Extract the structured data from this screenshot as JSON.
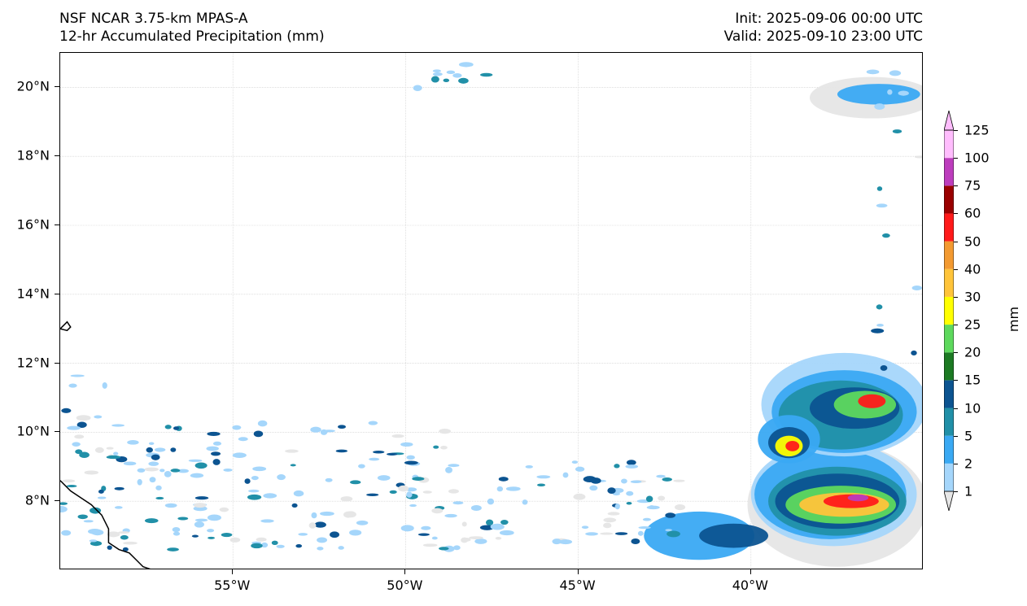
{
  "header": {
    "model_title": "NSF NCAR 3.75-km MPAS-A",
    "field_title": "12-hr Accumulated Precipitation (mm)",
    "init_text": "Init: 2025-09-06 00:00 UTC",
    "valid_text": "Valid: 2025-09-10 23:00 UTC"
  },
  "map": {
    "lon_range": [
      -60,
      -35
    ],
    "lat_range": [
      6,
      21
    ],
    "lat_labels": [
      {
        "value": 20,
        "text": "20°N"
      },
      {
        "value": 18,
        "text": "18°N"
      },
      {
        "value": 16,
        "text": "16°N"
      },
      {
        "value": 14,
        "text": "14°N"
      },
      {
        "value": 12,
        "text": "12°N"
      },
      {
        "value": 10,
        "text": "10°N"
      },
      {
        "value": 8,
        "text": "8°N"
      }
    ],
    "lon_labels": [
      {
        "value": -55,
        "text": "55°W"
      },
      {
        "value": -50,
        "text": "50°W"
      },
      {
        "value": -45,
        "text": "45°W"
      },
      {
        "value": -40,
        "text": "40°W"
      }
    ],
    "precip_regions": [
      {
        "level": 1,
        "lon": -37.5,
        "lat": 7.9,
        "rlon": 2.6,
        "rlat": 1.8
      },
      {
        "level": 2,
        "lon": -37.6,
        "lat": 8.2,
        "rlon": 2.4,
        "rlat": 1.5
      },
      {
        "level": 5,
        "lon": -37.7,
        "lat": 8.2,
        "rlon": 2.2,
        "rlat": 1.3
      },
      {
        "level": 10,
        "lon": -37.5,
        "lat": 8.0,
        "rlon": 2.0,
        "rlat": 1.0
      },
      {
        "level": 15,
        "lon": -37.5,
        "lat": 8.0,
        "rlon": 1.8,
        "rlat": 0.8
      },
      {
        "level": 25,
        "lon": -37.4,
        "lat": 7.9,
        "rlon": 1.6,
        "rlat": 0.55
      },
      {
        "level": 40,
        "lon": -37.3,
        "lat": 7.9,
        "rlon": 1.3,
        "rlat": 0.35
      },
      {
        "level": 60,
        "lon": -37.1,
        "lat": 8.0,
        "rlon": 0.8,
        "rlat": 0.2
      },
      {
        "level": 100,
        "lon": -36.9,
        "lat": 8.1,
        "rlon": 0.3,
        "rlat": 0.1
      },
      {
        "level": 2,
        "lon": -37.3,
        "lat": 10.8,
        "rlon": 2.4,
        "rlat": 1.5
      },
      {
        "level": 5,
        "lon": -37.3,
        "lat": 10.6,
        "rlon": 2.1,
        "rlat": 1.2
      },
      {
        "level": 10,
        "lon": -37.4,
        "lat": 10.5,
        "rlon": 1.8,
        "rlat": 1.0
      },
      {
        "level": 15,
        "lon": -37.0,
        "lat": 10.7,
        "rlon": 1.3,
        "rlat": 0.6
      },
      {
        "level": 25,
        "lon": -36.7,
        "lat": 10.8,
        "rlon": 0.9,
        "rlat": 0.4
      },
      {
        "level": 60,
        "lon": -36.5,
        "lat": 10.9,
        "rlon": 0.4,
        "rlat": 0.2
      },
      {
        "level": 5,
        "lon": -38.9,
        "lat": 9.8,
        "rlon": 0.9,
        "rlat": 0.7
      },
      {
        "level": 15,
        "lon": -38.9,
        "lat": 9.7,
        "rlon": 0.6,
        "rlat": 0.45
      },
      {
        "level": 30,
        "lon": -38.9,
        "lat": 9.6,
        "rlon": 0.4,
        "rlat": 0.3
      },
      {
        "level": 60,
        "lon": -38.8,
        "lat": 9.6,
        "rlon": 0.2,
        "rlat": 0.15
      },
      {
        "level": 5,
        "lon": -41.5,
        "lat": 7.0,
        "rlon": 1.6,
        "rlat": 0.7
      },
      {
        "level": 15,
        "lon": -40.5,
        "lat": 7.0,
        "rlon": 1.0,
        "rlat": 0.35
      },
      {
        "level": 1,
        "lon": -36.5,
        "lat": 19.7,
        "rlon": 1.8,
        "rlat": 0.6
      },
      {
        "level": 5,
        "lon": -36.3,
        "lat": 19.8,
        "rlon": 1.2,
        "rlat": 0.3
      }
    ],
    "scatter_cells": [
      {
        "lon_min": -60,
        "lon_max": -48.5,
        "lat_min": 6.6,
        "lat_max": 10.3,
        "count": 170
      },
      {
        "lon_min": -48.5,
        "lon_max": -42,
        "lat_min": 6.8,
        "lat_max": 9.2,
        "count": 70
      },
      {
        "lon_min": -60,
        "lon_max": -58.5,
        "lat_min": 9.5,
        "lat_max": 11.8,
        "count": 10
      },
      {
        "lon_min": -50,
        "lon_max": -47.5,
        "lat_min": 19.8,
        "lat_max": 20.9,
        "count": 10
      },
      {
        "lon_min": -36.5,
        "lon_max": -35,
        "lat_min": 11.8,
        "lat_max": 20.5,
        "count": 16
      }
    ],
    "coastline": [
      [
        -60.0,
        8.6
      ],
      [
        -59.7,
        8.3
      ],
      [
        -59.4,
        8.1
      ],
      [
        -59.1,
        7.9
      ],
      [
        -58.8,
        7.6
      ],
      [
        -58.6,
        7.2
      ],
      [
        -58.6,
        6.8
      ],
      [
        -58.3,
        6.6
      ],
      [
        -58.0,
        6.5
      ],
      [
        -57.8,
        6.3
      ],
      [
        -57.6,
        6.1
      ],
      [
        -57.3,
        6.0
      ]
    ],
    "island": [
      [
        -60.0,
        13.0
      ],
      [
        -59.8,
        13.2
      ],
      [
        -59.7,
        13.05
      ],
      [
        -59.8,
        12.95
      ]
    ]
  },
  "colorbar": {
    "units": "mm",
    "levels": [
      1,
      2,
      5,
      10,
      15,
      20,
      25,
      30,
      40,
      50,
      60,
      75,
      100,
      125
    ],
    "labels": [
      "1",
      "2",
      "5",
      "10",
      "15",
      "20",
      "25",
      "30",
      "40",
      "50",
      "60",
      "75",
      "100",
      "125"
    ],
    "colors": [
      "#e6e6e6",
      "#a5d6fb",
      "#3aa9f3",
      "#2190a8",
      "#0c5491",
      "#1c7a23",
      "#5ed95d",
      "#ffff00",
      "#ffc43a",
      "#f39a31",
      "#ff1a1a",
      "#9a0000",
      "#bd3dbd",
      "#ffbdfd"
    ]
  }
}
